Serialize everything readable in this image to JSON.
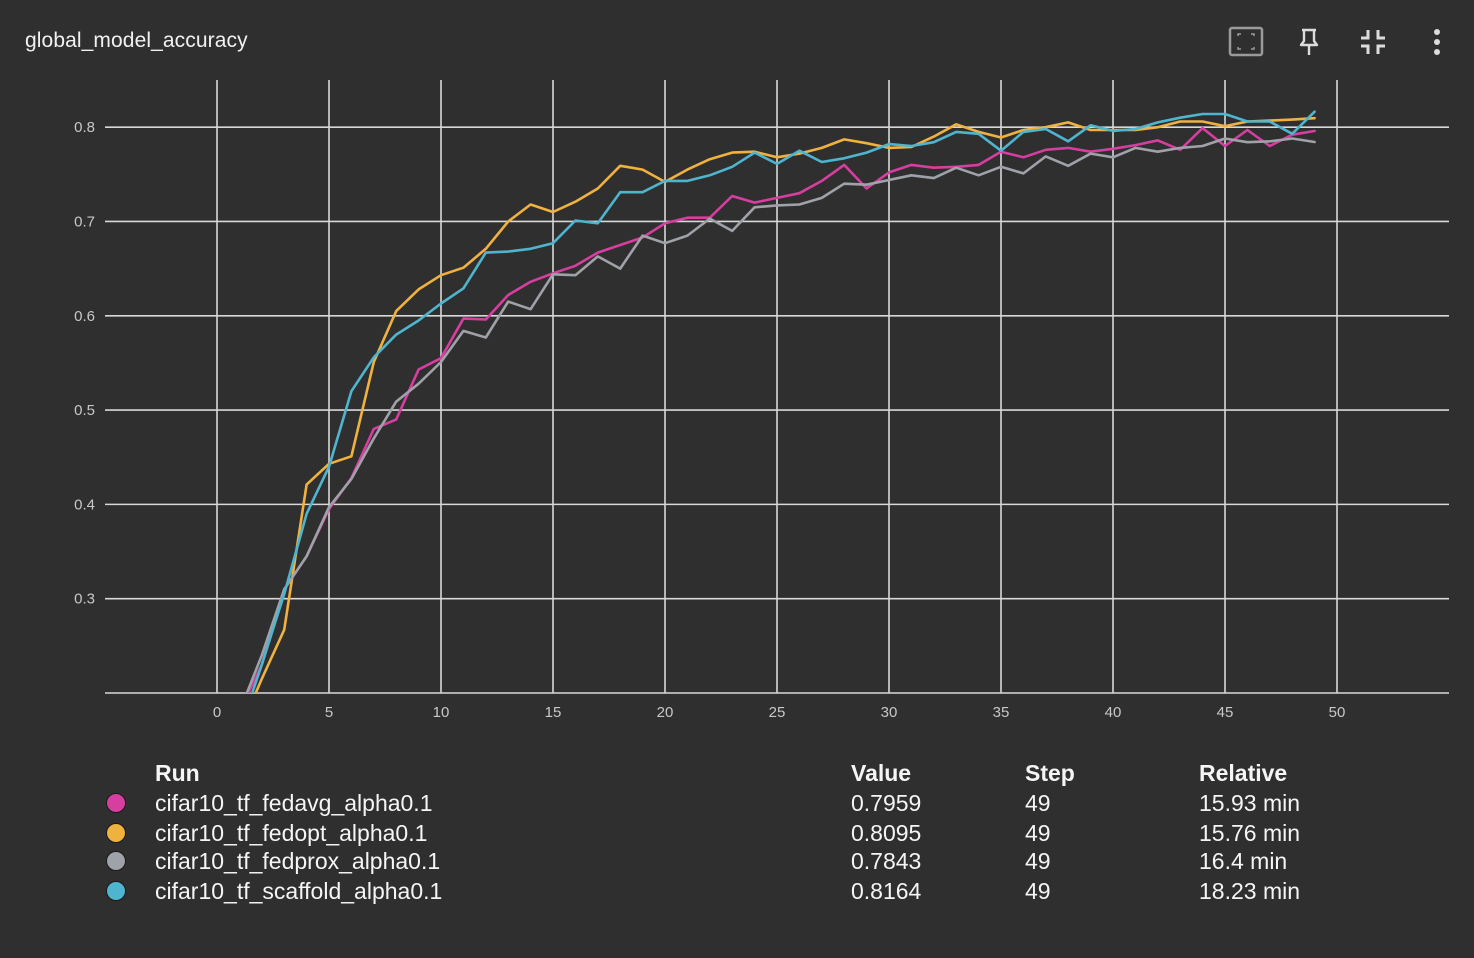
{
  "card": {
    "title": "global_model_accuracy"
  },
  "toolbar": {
    "icons": [
      "fit-to-data-icon",
      "pin-icon",
      "collapse-icon",
      "more-vert-icon"
    ]
  },
  "chart_data": {
    "type": "line",
    "title": "global_model_accuracy",
    "xlabel": "",
    "ylabel": "",
    "xlim": [
      -5,
      55
    ],
    "ylim": [
      0.2,
      0.85
    ],
    "x_ticks": [
      0,
      5,
      10,
      15,
      20,
      25,
      30,
      35,
      40,
      45,
      50
    ],
    "y_ticks": [
      0.3,
      0.4,
      0.5,
      0.6,
      0.7,
      0.8
    ],
    "grid": true,
    "legend": "bottom-table",
    "x": [
      0,
      1,
      2,
      3,
      4,
      5,
      6,
      7,
      8,
      9,
      10,
      11,
      12,
      13,
      14,
      15,
      16,
      17,
      18,
      19,
      20,
      21,
      22,
      23,
      24,
      25,
      26,
      27,
      28,
      29,
      30,
      31,
      32,
      33,
      34,
      35,
      36,
      37,
      38,
      39,
      40,
      41,
      42,
      43,
      44,
      45,
      46,
      47,
      48,
      49
    ],
    "series": [
      {
        "name": "cifar10_tf_fedavg_alpha0.1",
        "color": "#d63ea0",
        "values": [
          0.13,
          0.18,
          0.23,
          0.31,
          0.345,
          0.395,
          0.428,
          0.48,
          0.49,
          0.543,
          0.555,
          0.597,
          0.596,
          0.622,
          0.636,
          0.645,
          0.653,
          0.667,
          0.675,
          0.683,
          0.698,
          0.704,
          0.704,
          0.727,
          0.72,
          0.725,
          0.73,
          0.743,
          0.76,
          0.735,
          0.752,
          0.76,
          0.757,
          0.758,
          0.76,
          0.774,
          0.768,
          0.776,
          0.778,
          0.774,
          0.777,
          0.781,
          0.786,
          0.776,
          0.799,
          0.78,
          0.797,
          0.78,
          0.792,
          0.7959
        ]
      },
      {
        "name": "cifar10_tf_fedopt_alpha0.1",
        "color": "#f0b23f",
        "values": [
          0.11,
          0.16,
          0.215,
          0.267,
          0.421,
          0.443,
          0.451,
          0.551,
          0.605,
          0.628,
          0.643,
          0.651,
          0.671,
          0.7,
          0.718,
          0.71,
          0.721,
          0.735,
          0.759,
          0.755,
          0.742,
          0.755,
          0.766,
          0.773,
          0.774,
          0.768,
          0.772,
          0.778,
          0.787,
          0.783,
          0.778,
          0.779,
          0.79,
          0.803,
          0.795,
          0.789,
          0.797,
          0.8,
          0.805,
          0.797,
          0.797,
          0.797,
          0.8,
          0.806,
          0.806,
          0.801,
          0.806,
          0.807,
          0.808,
          0.8095
        ]
      },
      {
        "name": "cifar10_tf_fedprox_alpha0.1",
        "color": "#9fa2a8",
        "values": [
          0.13,
          0.18,
          0.24,
          0.31,
          0.345,
          0.397,
          0.427,
          0.47,
          0.509,
          0.528,
          0.551,
          0.584,
          0.577,
          0.615,
          0.607,
          0.644,
          0.643,
          0.663,
          0.65,
          0.685,
          0.677,
          0.685,
          0.703,
          0.69,
          0.715,
          0.717,
          0.718,
          0.725,
          0.74,
          0.739,
          0.744,
          0.749,
          0.746,
          0.757,
          0.749,
          0.758,
          0.751,
          0.769,
          0.759,
          0.772,
          0.768,
          0.778,
          0.774,
          0.778,
          0.78,
          0.788,
          0.784,
          0.785,
          0.788,
          0.7843
        ]
      },
      {
        "name": "cifar10_tf_scaffold_alpha0.1",
        "color": "#4fb5cf",
        "values": [
          0.11,
          0.16,
          0.23,
          0.305,
          0.39,
          0.44,
          0.52,
          0.556,
          0.58,
          0.595,
          0.613,
          0.629,
          0.667,
          0.668,
          0.671,
          0.677,
          0.701,
          0.698,
          0.731,
          0.731,
          0.743,
          0.743,
          0.749,
          0.758,
          0.773,
          0.761,
          0.775,
          0.763,
          0.767,
          0.773,
          0.782,
          0.78,
          0.784,
          0.795,
          0.793,
          0.775,
          0.795,
          0.798,
          0.785,
          0.802,
          0.796,
          0.798,
          0.805,
          0.81,
          0.814,
          0.814,
          0.806,
          0.806,
          0.793,
          0.8164
        ]
      }
    ]
  },
  "legend": {
    "headers": {
      "run": "Run",
      "value": "Value",
      "step": "Step",
      "relative": "Relative"
    },
    "rows": [
      {
        "color": "#d63ea0",
        "run": "cifar10_tf_fedavg_alpha0.1",
        "value": "0.7959",
        "step": "49",
        "relative": "15.93 min"
      },
      {
        "color": "#f0b23f",
        "run": "cifar10_tf_fedopt_alpha0.1",
        "value": "0.8095",
        "step": "49",
        "relative": "15.76 min"
      },
      {
        "color": "#9fa2a8",
        "run": "cifar10_tf_fedprox_alpha0.1",
        "value": "0.7843",
        "step": "49",
        "relative": "16.4 min"
      },
      {
        "color": "#4fb5cf",
        "run": "cifar10_tf_scaffold_alpha0.1",
        "value": "0.8164",
        "step": "49",
        "relative": "18.23 min"
      }
    ]
  }
}
